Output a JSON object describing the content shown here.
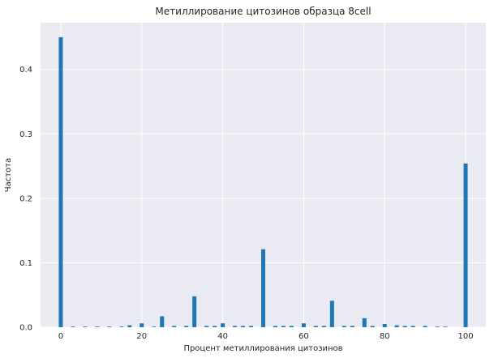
{
  "chart_data": {
    "type": "bar",
    "title": "Метиллирование цитозинов образца 8cell",
    "xlabel": "Процент метиллирования цитозинов",
    "ylabel": "Частота",
    "xlim": [
      -5,
      105
    ],
    "ylim": [
      0,
      0.4725
    ],
    "xticks": [
      "0",
      "20",
      "40",
      "60",
      "80",
      "100"
    ],
    "yticks": [
      "0.0",
      "0.1",
      "0.2",
      "0.3",
      "0.4"
    ],
    "bar_width": 1,
    "color": "#1f77b4",
    "background": "#eaeaf2",
    "grid": true,
    "legend": "none",
    "x": [
      0,
      3,
      6,
      9,
      12,
      15,
      17,
      20,
      23,
      25,
      28,
      31,
      33,
      36,
      38,
      40,
      43,
      45,
      47,
      50,
      53,
      55,
      57,
      60,
      63,
      65,
      67,
      70,
      72,
      75,
      77,
      80,
      83,
      85,
      87,
      90,
      93,
      95,
      100
    ],
    "values": [
      0.45,
      0.001,
      0.001,
      0.001,
      0.001,
      0.001,
      0.003,
      0.006,
      0.001,
      0.017,
      0.002,
      0.002,
      0.048,
      0.002,
      0.002,
      0.006,
      0.002,
      0.002,
      0.002,
      0.121,
      0.002,
      0.002,
      0.002,
      0.006,
      0.002,
      0.002,
      0.041,
      0.002,
      0.002,
      0.014,
      0.002,
      0.005,
      0.003,
      0.002,
      0.002,
      0.002,
      0.001,
      0.001,
      0.254
    ]
  }
}
